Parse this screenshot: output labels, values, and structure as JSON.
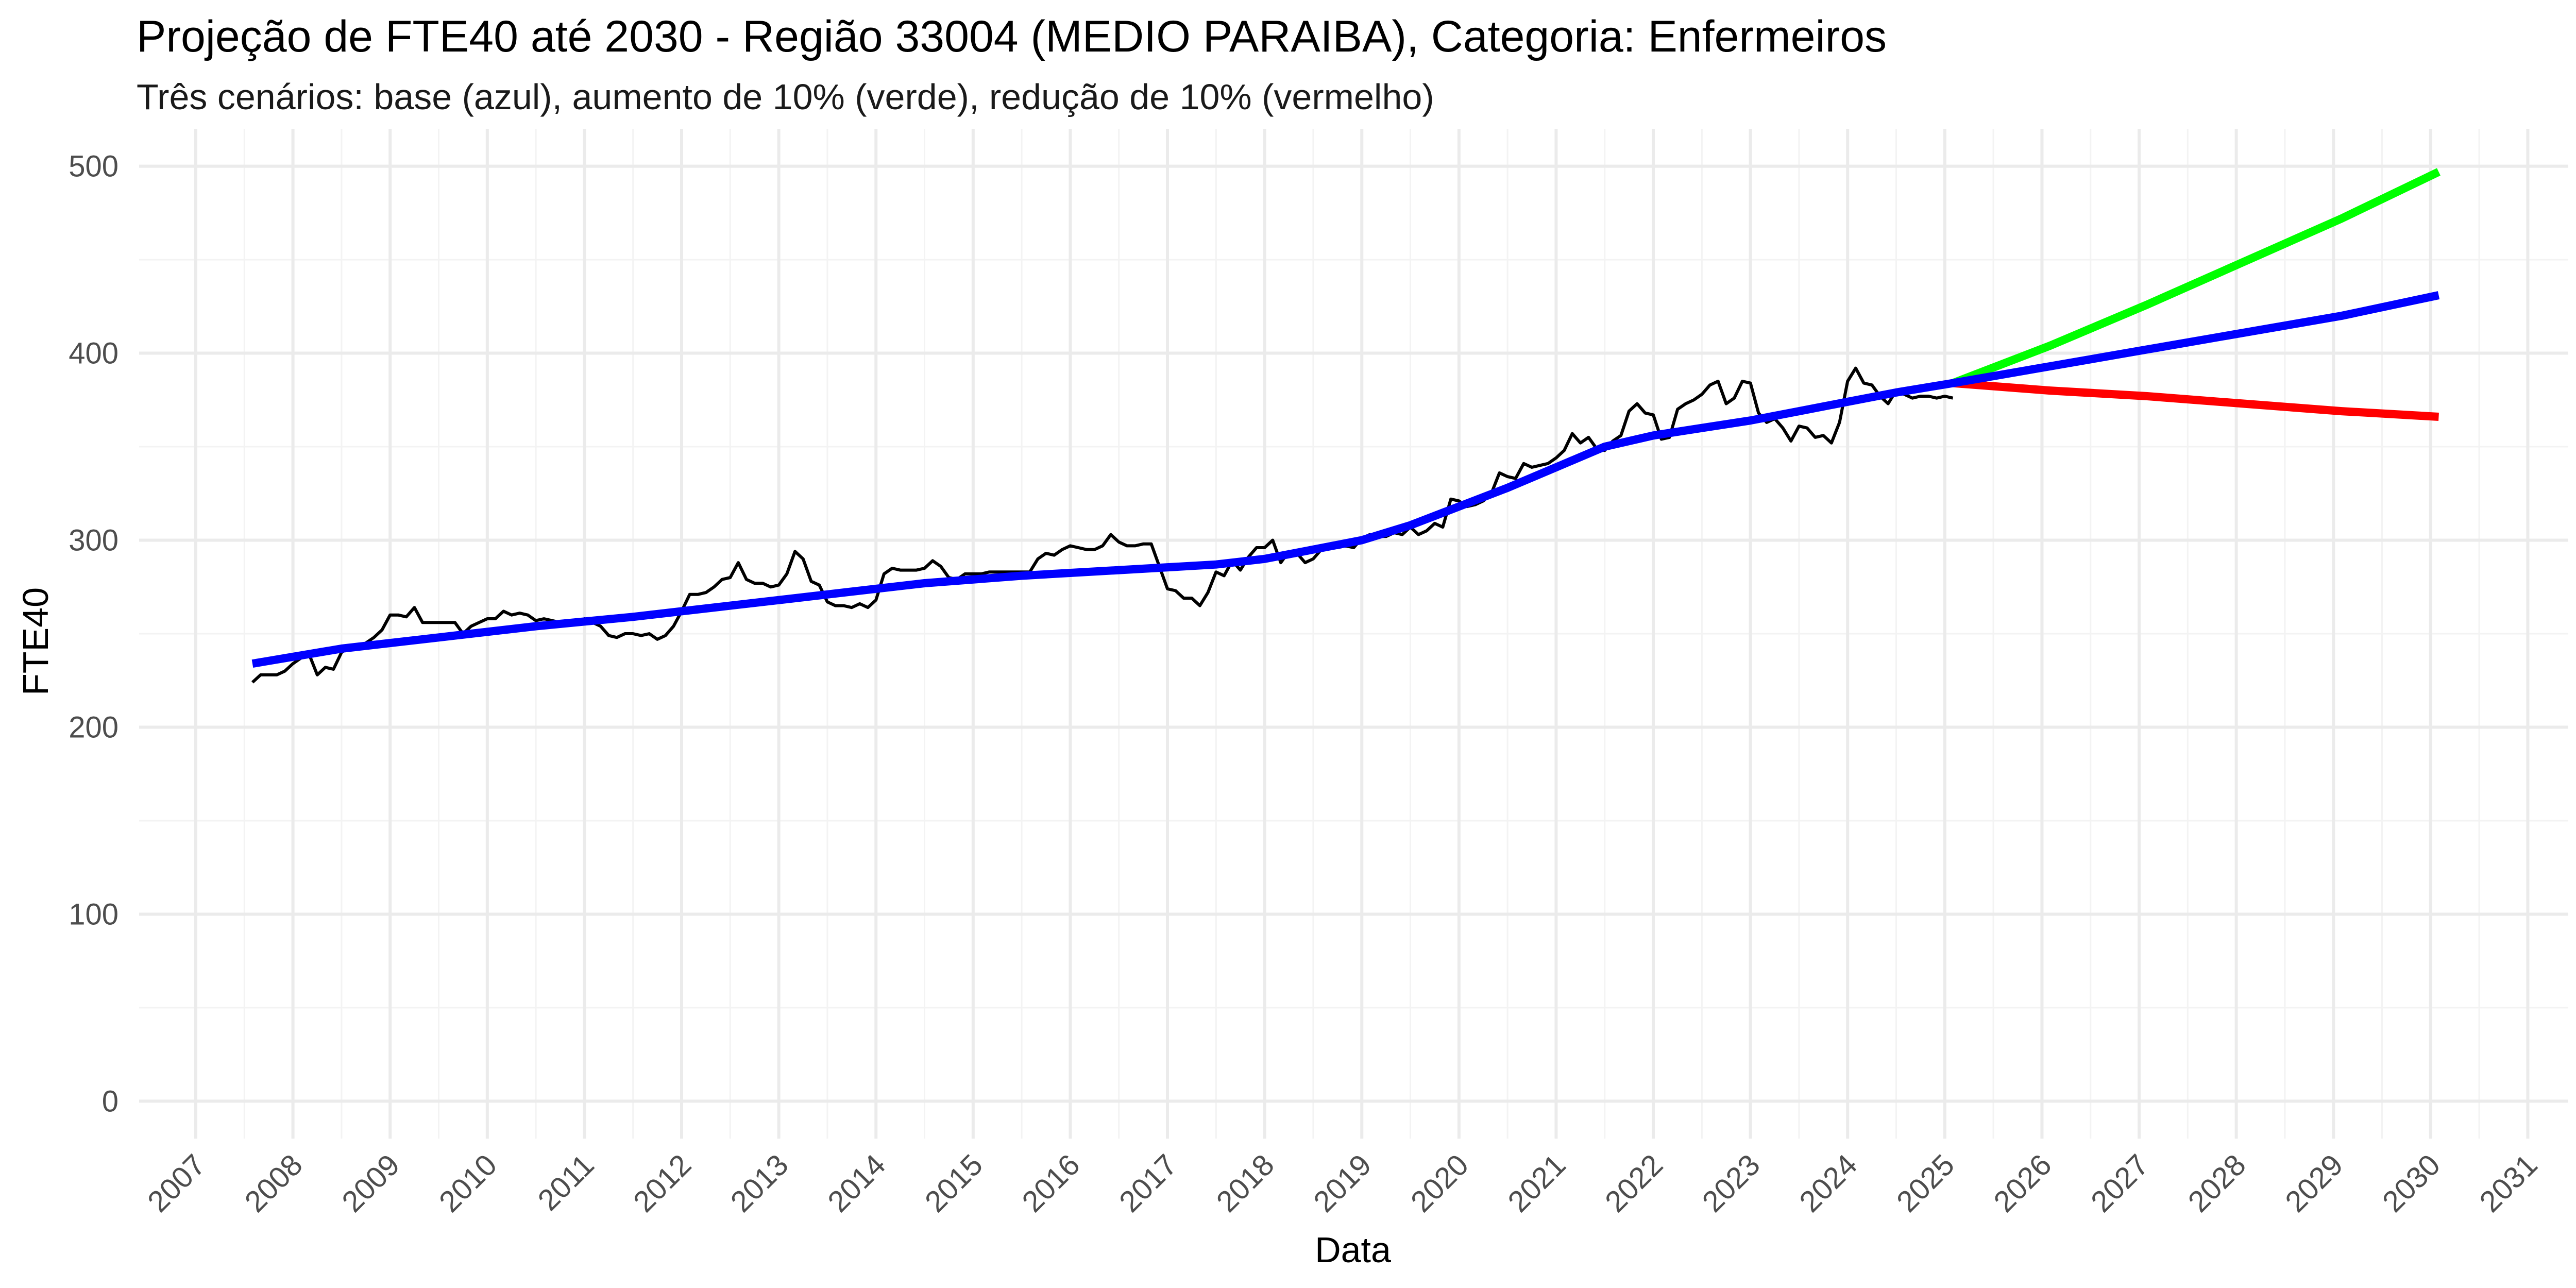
{
  "chart_data": {
    "type": "line",
    "title": "Projeção de FTE40 até 2030 - Região 33004 (MEDIO PARAIBA), Categoria: Enfermeiros",
    "subtitle": "Três cenários: base (azul), aumento de 10% (verde), redução de 10% (vermelho)",
    "xlabel": "Data",
    "ylabel": "FTE40",
    "xlim": [
      "2006-06-01",
      "2031-06-01"
    ],
    "ylim": [
      -20,
      520
    ],
    "x_ticks": [
      "2007",
      "2008",
      "2009",
      "2010",
      "2011",
      "2012",
      "2013",
      "2014",
      "2015",
      "2016",
      "2017",
      "2018",
      "2019",
      "2020",
      "2021",
      "2022",
      "2023",
      "2024",
      "2025",
      "2026",
      "2027",
      "2028",
      "2029",
      "2030",
      "2031"
    ],
    "y_ticks": [
      0,
      100,
      200,
      300,
      400,
      500
    ],
    "grid": true,
    "legend": "none",
    "colors": {
      "observed": "#000000",
      "base": "#0000ff",
      "increase": "#00ff00",
      "decrease": "#ff0000",
      "grid_major": "#ebebeb",
      "grid_minor": "#f3f3f3"
    },
    "series": [
      {
        "points": [
          [
            "2007-08",
            224
          ],
          [
            "2007-09",
            228
          ],
          [
            "2007-10",
            228
          ],
          [
            "2007-11",
            228
          ],
          [
            "2007-12",
            230
          ],
          [
            "2008-01",
            234
          ],
          [
            "2008-02",
            237
          ],
          [
            "2008-03",
            239
          ],
          [
            "2008-04",
            228
          ],
          [
            "2008-05",
            232
          ],
          [
            "2008-06",
            231
          ],
          [
            "2008-07",
            240
          ],
          [
            "2008-08",
            243
          ],
          [
            "2008-09",
            242
          ],
          [
            "2008-10",
            245
          ],
          [
            "2008-11",
            248
          ],
          [
            "2008-12",
            252
          ],
          [
            "2009-01",
            260
          ],
          [
            "2009-02",
            260
          ],
          [
            "2009-03",
            259
          ],
          [
            "2009-04",
            264
          ],
          [
            "2009-05",
            256
          ],
          [
            "2009-06",
            256
          ],
          [
            "2009-07",
            256
          ],
          [
            "2009-08",
            256
          ],
          [
            "2009-09",
            256
          ],
          [
            "2009-10",
            250
          ],
          [
            "2009-11",
            254
          ],
          [
            "2009-12",
            256
          ],
          [
            "2010-01",
            258
          ],
          [
            "2010-02",
            258
          ],
          [
            "2010-03",
            262
          ],
          [
            "2010-04",
            260
          ],
          [
            "2010-05",
            261
          ],
          [
            "2010-06",
            260
          ],
          [
            "2010-07",
            257
          ],
          [
            "2010-08",
            258
          ],
          [
            "2010-09",
            257
          ],
          [
            "2010-10",
            256
          ],
          [
            "2010-11",
            256
          ],
          [
            "2010-12",
            256
          ],
          [
            "2011-01",
            258
          ],
          [
            "2011-02",
            256
          ],
          [
            "2011-03",
            254
          ],
          [
            "2011-04",
            249
          ],
          [
            "2011-05",
            248
          ],
          [
            "2011-06",
            250
          ],
          [
            "2011-07",
            250
          ],
          [
            "2011-08",
            249
          ],
          [
            "2011-09",
            250
          ],
          [
            "2011-10",
            247
          ],
          [
            "2011-11",
            249
          ],
          [
            "2011-12",
            254
          ],
          [
            "2012-01",
            262
          ],
          [
            "2012-02",
            271
          ],
          [
            "2012-03",
            271
          ],
          [
            "2012-04",
            272
          ],
          [
            "2012-05",
            275
          ],
          [
            "2012-06",
            279
          ],
          [
            "2012-07",
            280
          ],
          [
            "2012-08",
            288
          ],
          [
            "2012-09",
            279
          ],
          [
            "2012-10",
            277
          ],
          [
            "2012-11",
            277
          ],
          [
            "2012-12",
            275
          ],
          [
            "2013-01",
            276
          ],
          [
            "2013-02",
            282
          ],
          [
            "2013-03",
            294
          ],
          [
            "2013-04",
            290
          ],
          [
            "2013-05",
            278
          ],
          [
            "2013-06",
            276
          ],
          [
            "2013-07",
            267
          ],
          [
            "2013-08",
            265
          ],
          [
            "2013-09",
            265
          ],
          [
            "2013-10",
            264
          ],
          [
            "2013-11",
            266
          ],
          [
            "2013-12",
            264
          ],
          [
            "2014-01",
            268
          ],
          [
            "2014-02",
            282
          ],
          [
            "2014-03",
            285
          ],
          [
            "2014-04",
            284
          ],
          [
            "2014-05",
            284
          ],
          [
            "2014-06",
            284
          ],
          [
            "2014-07",
            285
          ],
          [
            "2014-08",
            289
          ],
          [
            "2014-09",
            286
          ],
          [
            "2014-10",
            280
          ],
          [
            "2014-11",
            279
          ],
          [
            "2014-12",
            282
          ],
          [
            "2015-01",
            282
          ],
          [
            "2015-02",
            282
          ],
          [
            "2015-03",
            283
          ],
          [
            "2015-04",
            283
          ],
          [
            "2015-05",
            283
          ],
          [
            "2015-06",
            283
          ],
          [
            "2015-07",
            283
          ],
          [
            "2015-08",
            283
          ],
          [
            "2015-09",
            290
          ],
          [
            "2015-10",
            293
          ],
          [
            "2015-11",
            292
          ],
          [
            "2015-12",
            295
          ],
          [
            "2016-01",
            297
          ],
          [
            "2016-02",
            296
          ],
          [
            "2016-03",
            295
          ],
          [
            "2016-04",
            295
          ],
          [
            "2016-05",
            297
          ],
          [
            "2016-06",
            303
          ],
          [
            "2016-07",
            299
          ],
          [
            "2016-08",
            297
          ],
          [
            "2016-09",
            297
          ],
          [
            "2016-10",
            298
          ],
          [
            "2016-11",
            298
          ],
          [
            "2016-12",
            286
          ],
          [
            "2017-01",
            274
          ],
          [
            "2017-02",
            273
          ],
          [
            "2017-03",
            269
          ],
          [
            "2017-04",
            269
          ],
          [
            "2017-05",
            265
          ],
          [
            "2017-06",
            272
          ],
          [
            "2017-07",
            283
          ],
          [
            "2017-08",
            281
          ],
          [
            "2017-09",
            289
          ],
          [
            "2017-10",
            284
          ],
          [
            "2017-11",
            291
          ],
          [
            "2017-12",
            296
          ],
          [
            "2018-01",
            296
          ],
          [
            "2018-02",
            300
          ],
          [
            "2018-03",
            288
          ],
          [
            "2018-04",
            294
          ],
          [
            "2018-05",
            293
          ],
          [
            "2018-06",
            288
          ],
          [
            "2018-07",
            290
          ],
          [
            "2018-08",
            295
          ],
          [
            "2018-09",
            296
          ],
          [
            "2018-10",
            296
          ],
          [
            "2018-11",
            297
          ],
          [
            "2018-12",
            296
          ],
          [
            "2019-01",
            301
          ],
          [
            "2019-02",
            303
          ],
          [
            "2019-03",
            302
          ],
          [
            "2019-04",
            302
          ],
          [
            "2019-05",
            304
          ],
          [
            "2019-06",
            303
          ],
          [
            "2019-07",
            307
          ],
          [
            "2019-08",
            303
          ],
          [
            "2019-09",
            305
          ],
          [
            "2019-10",
            309
          ],
          [
            "2019-11",
            307
          ],
          [
            "2019-12",
            322
          ],
          [
            "2020-01",
            321
          ],
          [
            "2020-02",
            318
          ],
          [
            "2020-03",
            319
          ],
          [
            "2020-04",
            321
          ],
          [
            "2020-05",
            325
          ],
          [
            "2020-06",
            336
          ],
          [
            "2020-07",
            334
          ],
          [
            "2020-08",
            333
          ],
          [
            "2020-09",
            341
          ],
          [
            "2020-10",
            339
          ],
          [
            "2020-11",
            340
          ],
          [
            "2020-12",
            341
          ],
          [
            "2021-01",
            344
          ],
          [
            "2021-02",
            348
          ],
          [
            "2021-03",
            357
          ],
          [
            "2021-04",
            352
          ],
          [
            "2021-05",
            355
          ],
          [
            "2021-06",
            349
          ],
          [
            "2021-07",
            348
          ],
          [
            "2021-08",
            353
          ],
          [
            "2021-09",
            356
          ],
          [
            "2021-10",
            369
          ],
          [
            "2021-11",
            373
          ],
          [
            "2021-12",
            368
          ],
          [
            "2022-01",
            367
          ],
          [
            "2022-02",
            354
          ],
          [
            "2022-03",
            355
          ],
          [
            "2022-04",
            370
          ],
          [
            "2022-05",
            373
          ],
          [
            "2022-06",
            375
          ],
          [
            "2022-07",
            378
          ],
          [
            "2022-08",
            383
          ],
          [
            "2022-09",
            385
          ],
          [
            "2022-10",
            373
          ],
          [
            "2022-11",
            376
          ],
          [
            "2022-12",
            385
          ],
          [
            "2023-01",
            384
          ],
          [
            "2023-02",
            368
          ],
          [
            "2023-03",
            363
          ],
          [
            "2023-04",
            365
          ],
          [
            "2023-05",
            360
          ],
          [
            "2023-06",
            353
          ],
          [
            "2023-07",
            361
          ],
          [
            "2023-08",
            360
          ],
          [
            "2023-09",
            355
          ],
          [
            "2023-10",
            356
          ],
          [
            "2023-11",
            352
          ],
          [
            "2023-12",
            363
          ],
          [
            "2024-01",
            385
          ],
          [
            "2024-02",
            392
          ],
          [
            "2024-03",
            384
          ],
          [
            "2024-04",
            383
          ],
          [
            "2024-05",
            377
          ],
          [
            "2024-06",
            373
          ],
          [
            "2024-07",
            380
          ],
          [
            "2024-08",
            378
          ],
          [
            "2024-09",
            376
          ],
          [
            "2024-10",
            377
          ],
          [
            "2024-11",
            377
          ],
          [
            "2024-12",
            376
          ],
          [
            "2025-01",
            377
          ],
          [
            "2025-02",
            376
          ]
        ]
      },
      {
        "points": [
          [
            "2007-08",
            234
          ],
          [
            "2008-07",
            242
          ],
          [
            "2009-07",
            248
          ],
          [
            "2010-07",
            254
          ],
          [
            "2011-07",
            259
          ],
          [
            "2012-07",
            265
          ],
          [
            "2013-07",
            271
          ],
          [
            "2014-07",
            277
          ],
          [
            "2015-07",
            281
          ],
          [
            "2016-07",
            284
          ],
          [
            "2017-07",
            287
          ],
          [
            "2018-01",
            290
          ],
          [
            "2018-07",
            295
          ],
          [
            "2019-01",
            300
          ],
          [
            "2019-07",
            308
          ],
          [
            "2020-01",
            318
          ],
          [
            "2020-07",
            328
          ],
          [
            "2021-01",
            339
          ],
          [
            "2021-07",
            350
          ],
          [
            "2022-01",
            356
          ],
          [
            "2022-07",
            360
          ],
          [
            "2023-01",
            364
          ],
          [
            "2023-07",
            369
          ],
          [
            "2024-01",
            374
          ],
          [
            "2024-07",
            379
          ],
          [
            "2025-02",
            384
          ],
          [
            "2026-02",
            393
          ],
          [
            "2027-02",
            402
          ],
          [
            "2028-02",
            411
          ],
          [
            "2029-02",
            420
          ],
          [
            "2030-02",
            431
          ]
        ]
      },
      {
        "points": [
          [
            "2025-02",
            384
          ],
          [
            "2026-02",
            404
          ],
          [
            "2027-02",
            426
          ],
          [
            "2028-02",
            449
          ],
          [
            "2029-02",
            472
          ],
          [
            "2030-02",
            497
          ]
        ]
      },
      {
        "points": [
          [
            "2025-02",
            384
          ],
          [
            "2026-02",
            380
          ],
          [
            "2027-02",
            377
          ],
          [
            "2028-02",
            373
          ],
          [
            "2029-02",
            369
          ],
          [
            "2030-02",
            366
          ]
        ]
      }
    ]
  }
}
